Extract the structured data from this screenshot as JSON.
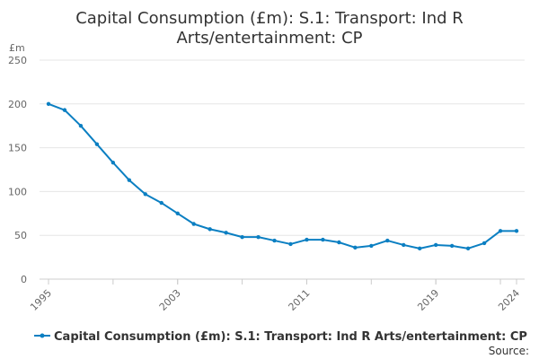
{
  "chart_data": {
    "type": "line",
    "title_line1": "Capital Consumption (£m): S.1: Transport: Ind R",
    "title_line2": "Arts/entertainment: CP",
    "ylabel": "£m",
    "xlabel": "",
    "ylim": [
      0,
      250
    ],
    "yticks": [
      0,
      50,
      100,
      150,
      200,
      250
    ],
    "xlim": [
      1995,
      2024
    ],
    "xticks": [
      1995,
      2003,
      2011,
      2019,
      2024
    ],
    "grid": true,
    "legend_position": "bottom",
    "series": [
      {
        "name": "Capital Consumption (£m): S.1: Transport: Ind R Arts/entertainment: CP",
        "color": "#0b7fc2",
        "x": [
          1995,
          1996,
          1997,
          1998,
          1999,
          2000,
          2001,
          2002,
          2003,
          2004,
          2005,
          2006,
          2007,
          2008,
          2009,
          2010,
          2011,
          2012,
          2013,
          2014,
          2015,
          2016,
          2017,
          2018,
          2019,
          2020,
          2021,
          2022,
          2023,
          2024
        ],
        "values": [
          200,
          193,
          175,
          154,
          133,
          113,
          97,
          87,
          75,
          63,
          57,
          53,
          48,
          48,
          44,
          40,
          45,
          45,
          42,
          36,
          38,
          44,
          39,
          35,
          39,
          38,
          35,
          41,
          55,
          55
        ]
      }
    ],
    "source_label": "Source:"
  },
  "colors": {
    "series": "#0b7fc2",
    "grid": "#e6e6e6",
    "axis_text": "#666666",
    "title": "#333333"
  }
}
